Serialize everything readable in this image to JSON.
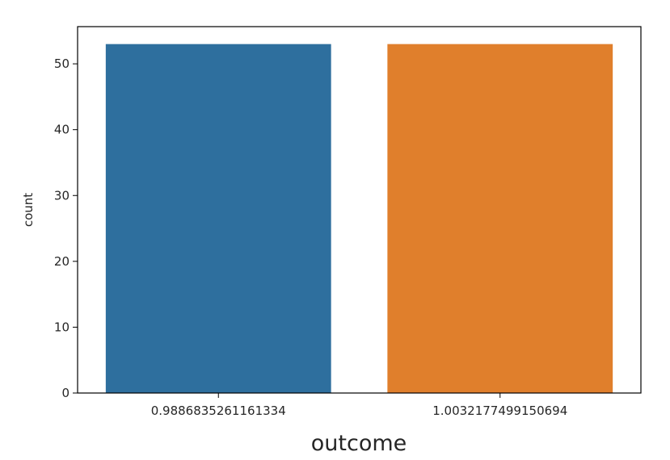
{
  "chart_data": {
    "type": "bar",
    "categories": [
      "0.9886835261161334",
      "1.0032177499150694"
    ],
    "values": [
      53,
      53
    ],
    "colors": [
      "#2e6f9e",
      "#e07f2c"
    ],
    "title": "",
    "xlabel": "outcome",
    "ylabel": "count",
    "ylim": [
      0,
      55.65
    ],
    "yticks": [
      0,
      10,
      20,
      30,
      40,
      50
    ],
    "grid": false
  }
}
